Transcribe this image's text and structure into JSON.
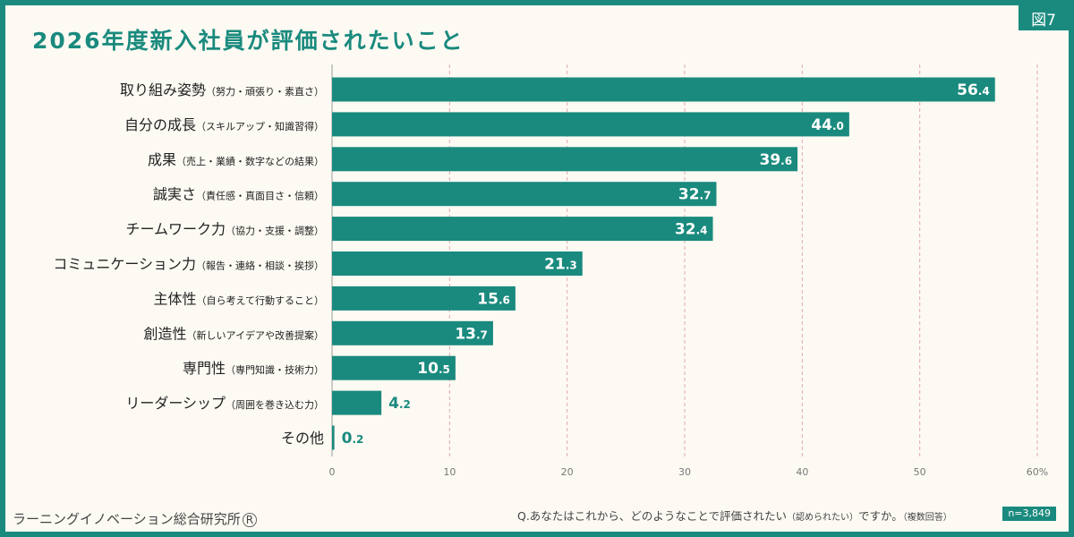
{
  "figure_label": "図7",
  "title": "2026年度新入社員が評価されたいこと",
  "colors": {
    "bar": "#1a8a7e",
    "accent": "#1a8a7e",
    "background": "#fdfaf3",
    "grid": "#e2a7b7"
  },
  "chart_data": {
    "type": "bar",
    "orientation": "horizontal",
    "categories": [
      {
        "main": "取り組み姿勢",
        "sub": "（努力・頑張り・素直さ）"
      },
      {
        "main": "自分の成長",
        "sub": "（スキルアップ・知識習得）"
      },
      {
        "main": "成果",
        "sub": "（売上・業績・数字などの結果）"
      },
      {
        "main": "誠実さ",
        "sub": "（責任感・真面目さ・信頼）"
      },
      {
        "main": "チームワーク力",
        "sub": "（協力・支援・調整）"
      },
      {
        "main": "コミュニケーション力",
        "sub": "（報告・連絡・相談・挨拶）"
      },
      {
        "main": "主体性",
        "sub": "（自ら考えて行動すること）"
      },
      {
        "main": "創造性",
        "sub": "（新しいアイデアや改善提案）"
      },
      {
        "main": "専門性",
        "sub": "（専門知識・技術力）"
      },
      {
        "main": "リーダーシップ",
        "sub": "（周囲を巻き込む力）"
      },
      {
        "main": "その他",
        "sub": ""
      }
    ],
    "values": [
      56.4,
      44.0,
      39.6,
      32.7,
      32.4,
      21.3,
      15.6,
      13.7,
      10.5,
      4.2,
      0.2
    ],
    "value_labels": [
      {
        "int": "56",
        "dec": ".4"
      },
      {
        "int": "44",
        "dec": ".0"
      },
      {
        "int": "39",
        "dec": ".6"
      },
      {
        "int": "32",
        "dec": ".7"
      },
      {
        "int": "32",
        "dec": ".4"
      },
      {
        "int": "21",
        "dec": ".3"
      },
      {
        "int": "15",
        "dec": ".6"
      },
      {
        "int": "13",
        "dec": ".7"
      },
      {
        "int": "10",
        "dec": ".5"
      },
      {
        "int": "4",
        "dec": ".2"
      },
      {
        "int": "0",
        "dec": ".2"
      }
    ],
    "xlim": [
      0,
      60
    ],
    "ticks": [
      0,
      10,
      20,
      30,
      40,
      50,
      60
    ],
    "tick_labels": [
      "0",
      "10",
      "20",
      "30",
      "40",
      "50",
      "60%"
    ],
    "grid": true
  },
  "footer": {
    "organization": "ラーニングイノベーション総合研究所",
    "registered_mark": "R",
    "question_main": "Q.あなたはこれから、どのようなことで評価されたい",
    "question_paren": "（認められたい）",
    "question_tail": "ですか。",
    "question_note": "（複数回答）",
    "sample_size": "n=3,849"
  }
}
